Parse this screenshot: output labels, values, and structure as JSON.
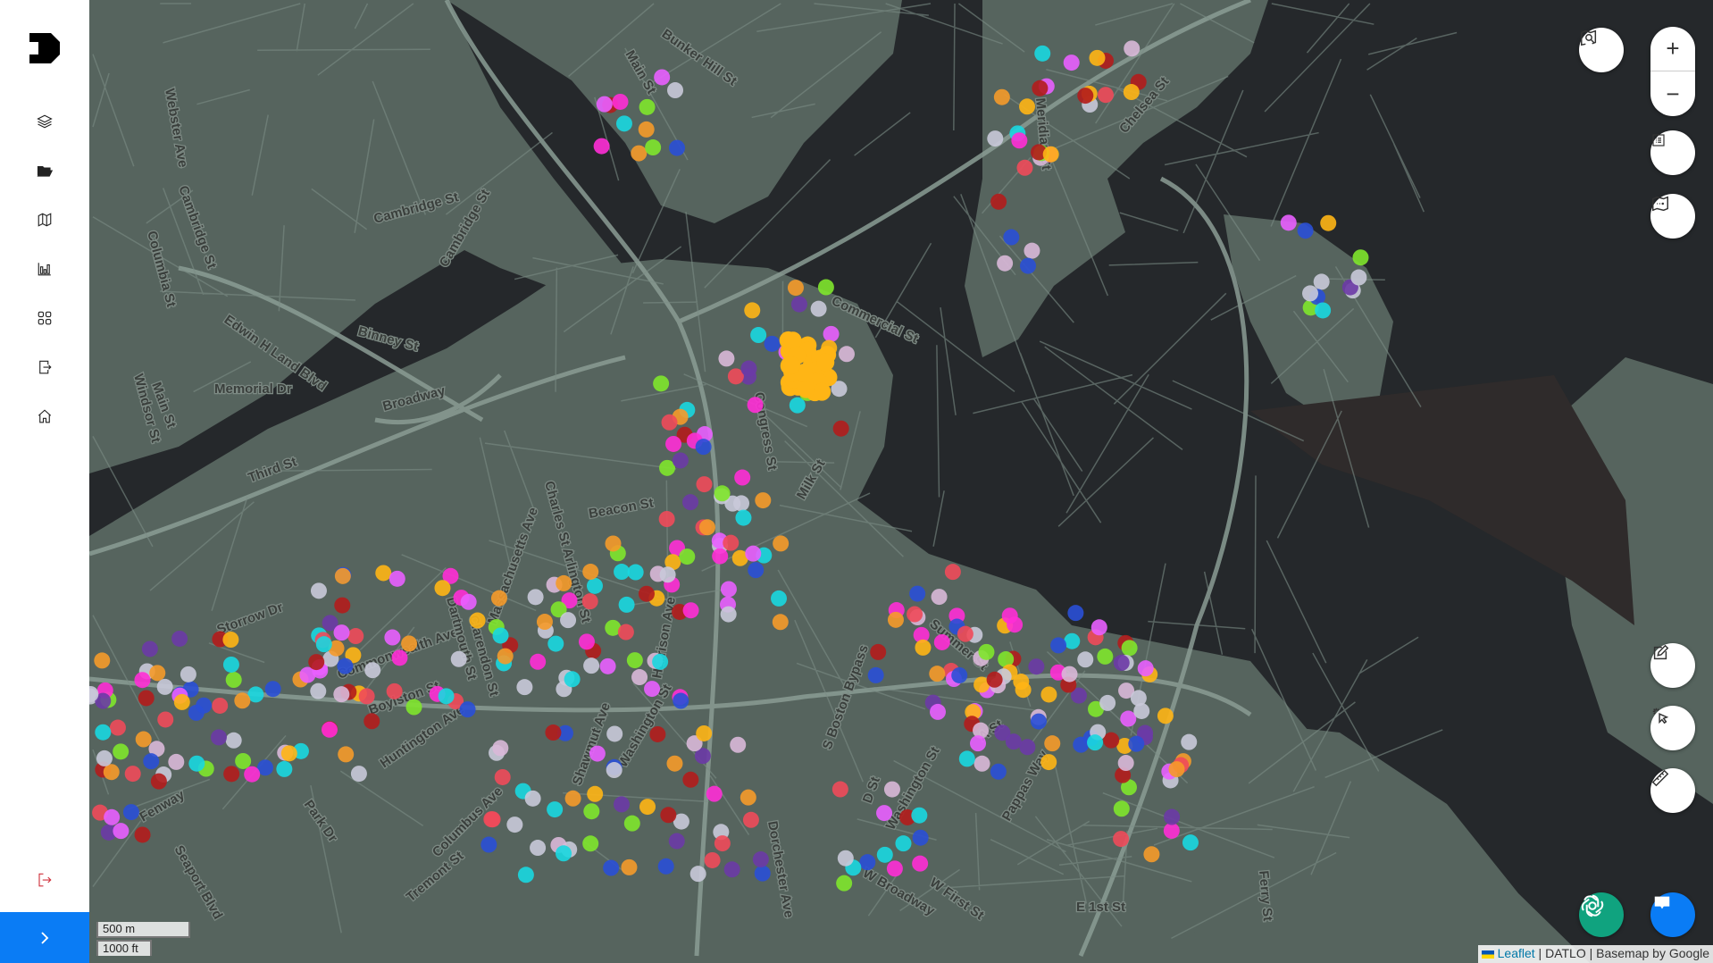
{
  "sidebar": {
    "logo": "D",
    "items": [
      {
        "name": "layers",
        "icon": "layers-icon"
      },
      {
        "name": "folder",
        "icon": "folder-open-icon"
      },
      {
        "name": "map",
        "icon": "map-icon"
      },
      {
        "name": "chart",
        "icon": "bar-chart-icon"
      },
      {
        "name": "apps",
        "icon": "grid-icon"
      },
      {
        "name": "export",
        "icon": "export-icon"
      },
      {
        "name": "home",
        "icon": "home-icon"
      }
    ],
    "logout_icon": "logout-icon",
    "expand_icon": "chevron-right-icon"
  },
  "controls": {
    "zoom_in": "+",
    "zoom_out": "−",
    "buttons": [
      "map-search-icon",
      "list-icon",
      "map-legend-icon",
      "draw-edit-icon",
      "select-cursor-icon",
      "ruler-icon",
      "chatgpt-icon",
      "chat-icon"
    ]
  },
  "scale": {
    "metric": "500 m",
    "imperial": "1000 ft"
  },
  "attribution": {
    "leaflet": "Leaflet",
    "rest": " | DATLO | Basemap by Google"
  },
  "colors": {
    "water": "#25282b",
    "land": "#56645e",
    "road": "#8a9c94",
    "accent": "#0a7cf5",
    "logout": "#d0313c",
    "chatgpt": "#10a37f"
  },
  "map_labels": [
    "Cambridge St",
    "Cambridge St",
    "Binney St",
    "Main St",
    "Memorial Dr",
    "Broadway",
    "Third St",
    "Edwin H Land Blvd",
    "Webster Ave",
    "Columbia St",
    "Windsor St",
    "Bunker Hill St",
    "Main St",
    "Meridian St",
    "Chelsea St",
    "Commercial St",
    "Congress St",
    "Milk St",
    "Beacon St",
    "Storrow Dr",
    "Commonwealth Ave",
    "Boylston St",
    "Huntington Ave",
    "Columbus Ave",
    "Tremont St",
    "Charles St",
    "Arlington St",
    "Dartmouth St",
    "Clarendon St",
    "Shawmut Ave",
    "Harrison Ave",
    "Washington St",
    "Massachusetts Ave",
    "Park Dr",
    "Fenway",
    "Seaport Blvd",
    "Summer St",
    "A St",
    "S Boston Bypass",
    "D St",
    "E 1st St",
    "W Broadway",
    "Dorchester Ave",
    "W First St",
    "Pappas Way",
    "Cambridge St",
    "Washington St",
    "Ferry St"
  ]
}
